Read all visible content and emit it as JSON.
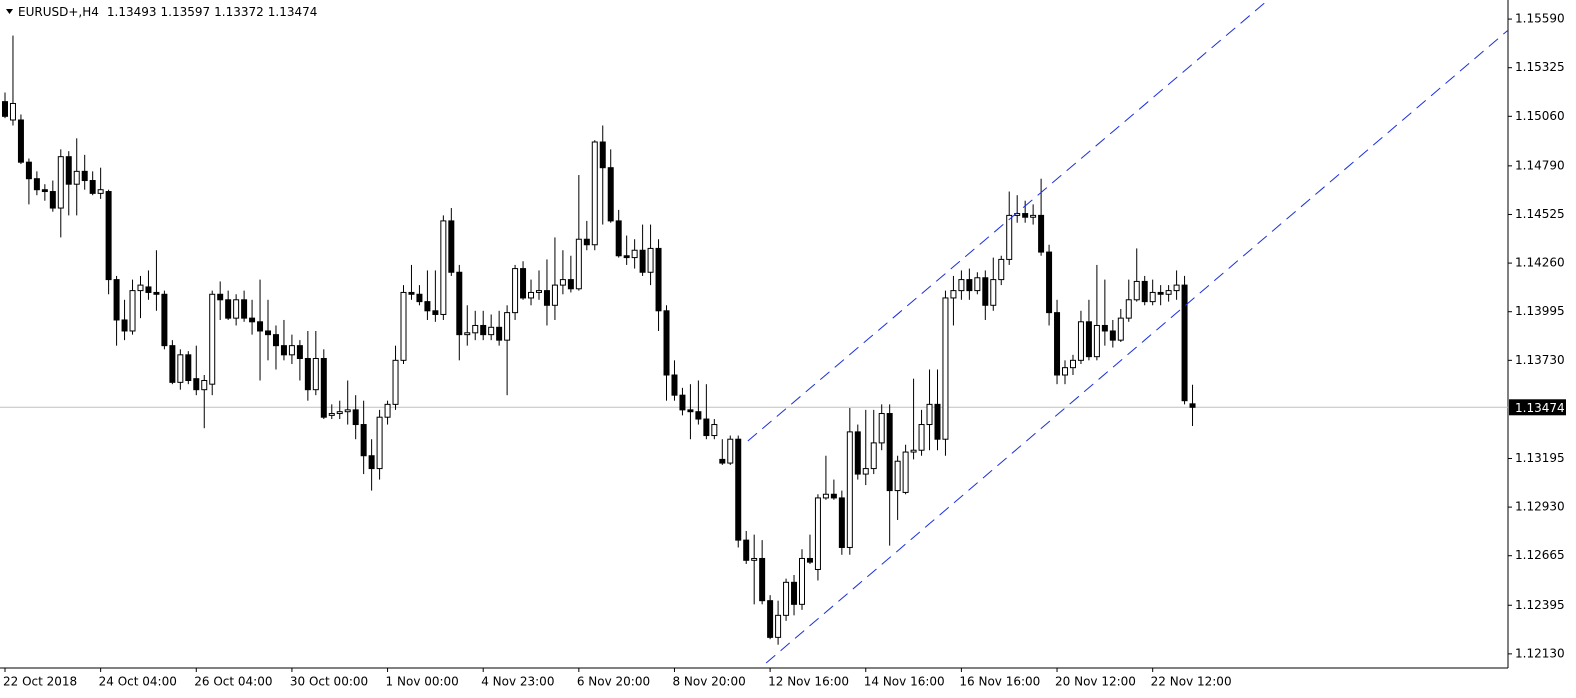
{
  "chart_data": {
    "type": "candlestick",
    "title": "EURUSD+,H4",
    "x": [
      "22 Oct 2018",
      null,
      null,
      null,
      null,
      null,
      null,
      null,
      null,
      null,
      null,
      null,
      "24 Oct 04:00",
      null,
      null,
      null,
      null,
      null,
      null,
      null,
      null,
      null,
      null,
      null,
      "26 Oct 04:00",
      null,
      null,
      null,
      null,
      null,
      null,
      null,
      null,
      null,
      null,
      null,
      "30 Oct 00:00",
      null,
      null,
      null,
      null,
      null,
      null,
      null,
      null,
      null,
      null,
      null,
      "1 Nov 00:00",
      null,
      null,
      null,
      null,
      null,
      null,
      null,
      null,
      null,
      null,
      null,
      "4 Nov 23:00",
      null,
      null,
      null,
      null,
      null,
      null,
      null,
      null,
      null,
      null,
      null,
      "6 Nov 20:00",
      null,
      null,
      null,
      null,
      null,
      null,
      null,
      null,
      null,
      null,
      null,
      "8 Nov 20:00",
      null,
      null,
      null,
      null,
      null,
      null,
      null,
      null,
      null,
      null,
      null,
      "12 Nov 16:00",
      null,
      null,
      null,
      null,
      null,
      null,
      null,
      null,
      null,
      null,
      null,
      "14 Nov 16:00",
      null,
      null,
      null,
      null,
      null,
      null,
      null,
      null,
      null,
      null,
      null,
      "16 Nov 16:00",
      null,
      null,
      null,
      null,
      null,
      null,
      null,
      null,
      null,
      null,
      null,
      "20 Nov 12:00",
      null,
      null,
      null,
      null,
      null,
      null,
      null,
      null,
      null,
      null,
      null,
      "22 Nov 12:00",
      null,
      null,
      null,
      null,
      null
    ],
    "open": [
      1.1514,
      1.1504,
      1.1504,
      1.1481,
      1.1472,
      1.1466,
      1.1465,
      1.1456,
      1.1484,
      1.1469,
      1.1476,
      1.1471,
      1.1464,
      1.1465,
      1.1417,
      1.1395,
      1.1389,
      1.1411,
      1.1413,
      1.141,
      1.1409,
      1.1381,
      1.1361,
      1.1376,
      1.1363,
      1.1357,
      1.136,
      1.1409,
      1.1406,
      1.1396,
      1.1406,
      1.1396,
      1.1394,
      1.1389,
      1.1387,
      1.1381,
      1.1376,
      1.1381,
      1.1374,
      1.1357,
      1.1374,
      1.1343,
      1.1344,
      1.1345,
      1.1346,
      1.1338,
      1.1321,
      1.1314,
      1.1342,
      1.1349,
      1.1373,
      1.141,
      1.1409,
      1.1405,
      1.14,
      1.1398,
      1.1449,
      1.1421,
      1.1387,
      1.1388,
      1.1392,
      1.1387,
      1.1391,
      1.1384,
      1.1399,
      1.1423,
      1.1407,
      1.141,
      1.1411,
      1.1403,
      1.1414,
      1.1417,
      1.1412,
      1.1439,
      1.1436,
      1.1492,
      1.1478,
      1.1449,
      1.143,
      1.1429,
      1.1433,
      1.1421,
      1.1434,
      1.14,
      1.1365,
      1.1354,
      1.1346,
      1.1345,
      1.1341,
      1.1332,
      1.1319,
      1.1317,
      1.133,
      1.1275,
      1.1264,
      1.1265,
      1.1242,
      1.1222,
      1.1234,
      1.1252,
      1.124,
      1.1265,
      1.1259,
      1.1298,
      1.13,
      1.1298,
      1.1271,
      1.1334,
      1.1311,
      1.1314,
      1.1328,
      1.1344,
      1.1302,
      1.1301,
      1.1323,
      1.1324,
      1.1338,
      1.1349,
      1.133,
      1.1407,
      1.1411,
      1.1417,
      1.1411,
      1.1418,
      1.1403,
      1.1417,
      1.1428,
      1.1452,
      1.1453,
      1.1451,
      1.1452,
      1.1432,
      1.1399,
      1.1365,
      1.1369,
      1.1373,
      1.1394,
      1.1375,
      1.1392,
      1.1389,
      1.1384,
      1.1396,
      1.1406,
      1.1416,
      1.1405,
      1.141,
      1.1409,
      1.1411,
      1.1414,
      1.13493
    ],
    "high": [
      1.1519,
      1.155,
      1.1507,
      1.1483,
      1.1476,
      1.1469,
      1.1471,
      1.1488,
      1.1487,
      1.1494,
      1.1485,
      1.1476,
      1.1478,
      1.1466,
      1.1419,
      1.1406,
      1.1417,
      1.1419,
      1.1422,
      1.1433,
      1.1411,
      1.1384,
      1.1379,
      1.1378,
      1.1381,
      1.1365,
      1.1411,
      1.1416,
      1.1411,
      1.1409,
      1.1411,
      1.1406,
      1.1417,
      1.1406,
      1.1392,
      1.1395,
      1.1387,
      1.1384,
      1.1389,
      1.1389,
      1.1379,
      1.1349,
      1.1351,
      1.1362,
      1.1354,
      1.1351,
      1.133,
      1.1346,
      1.1351,
      1.1381,
      1.1414,
      1.1425,
      1.1414,
      1.1422,
      1.1422,
      1.1452,
      1.1456,
      1.1425,
      1.1403,
      1.14,
      1.14,
      1.1398,
      1.14,
      1.1403,
      1.1425,
      1.1427,
      1.1417,
      1.1422,
      1.1428,
      1.144,
      1.1433,
      1.143,
      1.1474,
      1.1449,
      1.1493,
      1.1501,
      1.1488,
      1.1455,
      1.1441,
      1.1439,
      1.1447,
      1.1447,
      1.1439,
      1.1403,
      1.1373,
      1.1358,
      1.136,
      1.1362,
      1.136,
      1.1341,
      1.133,
      1.1332,
      1.1332,
      1.128,
      1.1278,
      1.1275,
      1.1245,
      1.1242,
      1.1254,
      1.1256,
      1.127,
      1.1278,
      1.13,
      1.1321,
      1.1308,
      1.1302,
      1.1347,
      1.1338,
      1.1346,
      1.1346,
      1.1349,
      1.1349,
      1.1321,
      1.1327,
      1.1363,
      1.1346,
      1.1368,
      1.1368,
      1.1411,
      1.1419,
      1.1422,
      1.1423,
      1.1421,
      1.1422,
      1.1429,
      1.143,
      1.1465,
      1.1463,
      1.146,
      1.1458,
      1.1472,
      1.1436,
      1.1406,
      1.1373,
      1.1376,
      1.14,
      1.1406,
      1.1425,
      1.1417,
      1.1395,
      1.1401,
      1.1417,
      1.1434,
      1.1419,
      1.1417,
      1.1414,
      1.1414,
      1.1422,
      1.1419,
      1.13597
    ],
    "low": [
      1.1505,
      1.1501,
      1.148,
      1.1458,
      1.1463,
      1.146,
      1.1454,
      1.144,
      1.1452,
      1.1452,
      1.1466,
      1.1463,
      1.1461,
      1.1409,
      1.1381,
      1.1384,
      1.1387,
      1.1396,
      1.1406,
      1.14,
      1.1379,
      1.136,
      1.1357,
      1.136,
      1.1354,
      1.1336,
      1.1354,
      1.1395,
      1.1395,
      1.1392,
      1.1394,
      1.1387,
      1.1362,
      1.1373,
      1.1368,
      1.1373,
      1.1371,
      1.1362,
      1.1351,
      1.1354,
      1.1341,
      1.1341,
      1.1341,
      1.1338,
      1.133,
      1.1311,
      1.1302,
      1.1308,
      1.1338,
      1.1346,
      1.1371,
      1.1406,
      1.1403,
      1.1395,
      1.1394,
      1.1395,
      1.1419,
      1.1373,
      1.1381,
      1.1384,
      1.1384,
      1.1384,
      1.1381,
      1.1354,
      1.1395,
      1.1406,
      1.1403,
      1.1406,
      1.1392,
      1.1395,
      1.1409,
      1.141,
      1.1411,
      1.1433,
      1.1433,
      1.1447,
      1.1448,
      1.1429,
      1.1425,
      1.1423,
      1.1419,
      1.1414,
      1.1389,
      1.1351,
      1.1351,
      1.1343,
      1.133,
      1.1338,
      1.133,
      1.133,
      1.1316,
      1.1316,
      1.1271,
      1.1262,
      1.124,
      1.124,
      1.1221,
      1.1218,
      1.1231,
      1.1234,
      1.1237,
      1.1262,
      1.1253,
      1.1297,
      1.1297,
      1.1267,
      1.1267,
      1.1308,
      1.1305,
      1.1311,
      1.1324,
      1.1272,
      1.1286,
      1.13,
      1.1319,
      1.1321,
      1.1324,
      1.1324,
      1.1321,
      1.1392,
      1.1406,
      1.1406,
      1.1409,
      1.1395,
      1.14,
      1.1414,
      1.1425,
      1.1448,
      1.1448,
      1.1447,
      1.143,
      1.1392,
      1.136,
      1.136,
      1.1365,
      1.1371,
      1.1373,
      1.1373,
      1.1381,
      1.138,
      1.1383,
      1.1394,
      1.1405,
      1.1403,
      1.1403,
      1.1403,
      1.1405,
      1.1406,
      1.1349,
      1.13372
    ],
    "close": [
      1.1506,
      1.1513,
      1.1481,
      1.1472,
      1.1466,
      1.1465,
      1.1456,
      1.1484,
      1.1469,
      1.1476,
      1.1471,
      1.1464,
      1.1466,
      1.1417,
      1.1395,
      1.1389,
      1.1411,
      1.1414,
      1.141,
      1.1409,
      1.1381,
      1.1361,
      1.1376,
      1.1362,
      1.1357,
      1.1362,
      1.1409,
      1.1406,
      1.1396,
      1.1406,
      1.1396,
      1.1394,
      1.1389,
      1.1387,
      1.1381,
      1.1376,
      1.1381,
      1.1374,
      1.1357,
      1.1374,
      1.1342,
      1.1344,
      1.1345,
      1.1346,
      1.1338,
      1.1321,
      1.1314,
      1.1342,
      1.1349,
      1.1373,
      1.141,
      1.1409,
      1.1405,
      1.14,
      1.1398,
      1.1449,
      1.1421,
      1.1387,
      1.1388,
      1.1392,
      1.1387,
      1.1391,
      1.1384,
      1.1399,
      1.1423,
      1.1407,
      1.141,
      1.1411,
      1.1403,
      1.1414,
      1.1417,
      1.1412,
      1.1439,
      1.1436,
      1.1492,
      1.1478,
      1.1449,
      1.143,
      1.1429,
      1.1433,
      1.1421,
      1.1434,
      1.14,
      1.1365,
      1.1354,
      1.1346,
      1.1345,
      1.1341,
      1.1332,
      1.1338,
      1.1317,
      1.133,
      1.1275,
      1.1264,
      1.1265,
      1.1242,
      1.1222,
      1.1234,
      1.1252,
      1.124,
      1.1265,
      1.1263,
      1.1298,
      1.13,
      1.1298,
      1.1271,
      1.1334,
      1.1311,
      1.1314,
      1.1328,
      1.1344,
      1.1302,
      1.1318,
      1.1323,
      1.1324,
      1.1338,
      1.1349,
      1.133,
      1.1407,
      1.1411,
      1.1417,
      1.1411,
      1.1418,
      1.1403,
      1.1417,
      1.1428,
      1.1452,
      1.1453,
      1.1451,
      1.1452,
      1.1432,
      1.1399,
      1.1365,
      1.1369,
      1.1373,
      1.1394,
      1.1375,
      1.1392,
      1.1389,
      1.1384,
      1.1396,
      1.1406,
      1.1416,
      1.1405,
      1.141,
      1.1409,
      1.1411,
      1.1414,
      1.1351,
      1.13474
    ],
    "up_color": "#ffffff",
    "down_color": "#000000",
    "trendlines": [
      {
        "color": "#1a2fe0",
        "x": [
          93.2,
          158.1
        ],
        "y": [
          1.1329,
          1.1568
        ]
      },
      {
        "color": "#1a2fe0",
        "x": [
          95.5,
          188.6
        ],
        "y": [
          1.1208,
          1.1553
        ]
      }
    ],
    "ylim": [
      1.12053,
      1.15694
    ],
    "yticks": [
      {
        "value": 1.1559,
        "label": "1.15590"
      },
      {
        "value": 1.15325,
        "label": "1.15325"
      },
      {
        "value": 1.1506,
        "label": "1.15060"
      },
      {
        "value": 1.1479,
        "label": "1.14790"
      },
      {
        "value": 1.14525,
        "label": "1.14525"
      },
      {
        "value": 1.1426,
        "label": "1.14260"
      },
      {
        "value": 1.13995,
        "label": "1.13995"
      },
      {
        "value": 1.1373,
        "label": "1.13730"
      },
      {
        "value": 1.13195,
        "label": "1.13195"
      },
      {
        "value": 1.1293,
        "label": "1.12930"
      },
      {
        "value": 1.12665,
        "label": "1.12665"
      },
      {
        "value": 1.12395,
        "label": "1.12395"
      },
      {
        "value": 1.1213,
        "label": "1.12130"
      }
    ],
    "grid": false
  }
}
